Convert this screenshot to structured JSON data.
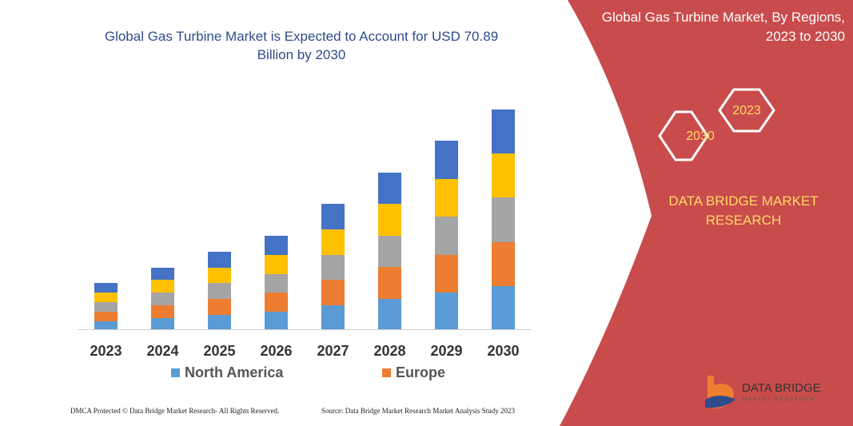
{
  "chart_data": {
    "type": "stacked-bar",
    "title": "Global Gas Turbine Market is Expected to Account for USD 70.89 Billion by 2030",
    "categories": [
      "2023",
      "2024",
      "2025",
      "2026",
      "2027",
      "2028",
      "2029",
      "2030"
    ],
    "series": [
      {
        "name": "North America",
        "color": "#5b9bd5",
        "values": [
          10,
          14,
          18,
          22,
          30,
          38,
          46,
          54
        ]
      },
      {
        "name": "Europe",
        "color": "#ed7d31",
        "values": [
          12,
          16,
          20,
          24,
          32,
          40,
          47,
          55
        ]
      },
      {
        "color": "#a5a5a5",
        "values": [
          12,
          16,
          20,
          23,
          31,
          39,
          48,
          56
        ]
      },
      {
        "color": "#ffc000",
        "values": [
          12,
          16,
          19,
          24,
          32,
          40,
          47,
          55
        ]
      },
      {
        "color": "#4472c4",
        "values": [
          12,
          15,
          20,
          24,
          32,
          39,
          48,
          55
        ]
      }
    ],
    "ylim": [
      0,
      300
    ],
    "grid": false
  },
  "panel": {
    "title": "Global Gas Turbine Market, By Regions, 2023 to 2030",
    "hex_right": "2023",
    "hex_left": "2030",
    "brand": "DATA BRIDGE MARKET RESEARCH"
  },
  "logo": {
    "name": "DATA BRIDGE",
    "tagline": "MARKET RESEARCH"
  },
  "footer": {
    "left": "DMCA Protected © Data Bridge Market Research- All Rights Reserved.",
    "right": "Source: Data Bridge Market Research Market Analysis Study 2023"
  }
}
